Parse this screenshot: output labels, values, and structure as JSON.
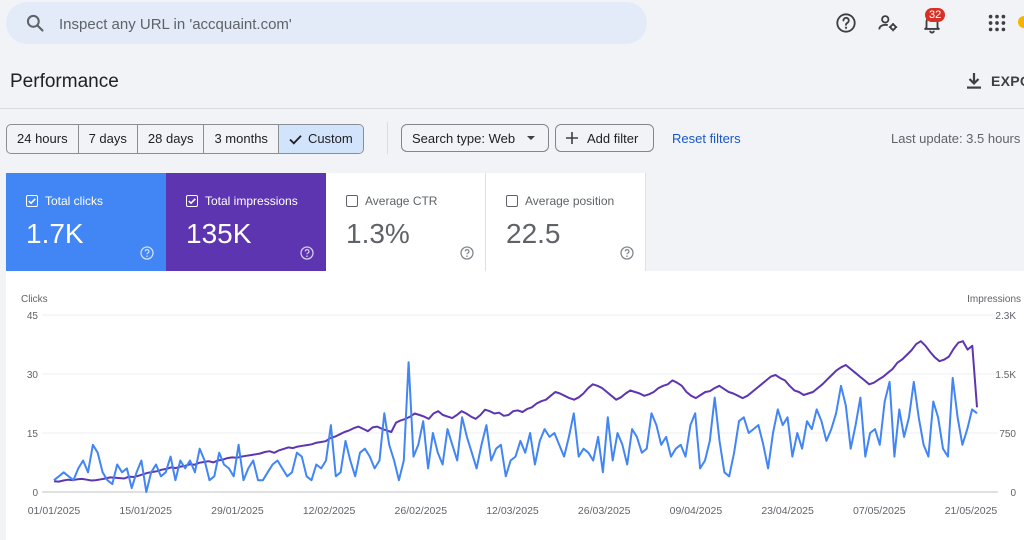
{
  "search": {
    "placeholder": "Inspect any URL in 'accquaint.com'"
  },
  "header": {
    "notification_count": "32",
    "icons": [
      "help-icon",
      "manage-users-icon",
      "notifications-icon",
      "apps-grid-icon"
    ]
  },
  "page": {
    "title": "Performance",
    "export_label": "EXPO"
  },
  "date_ranges": {
    "options": [
      "24 hours",
      "7 days",
      "28 days",
      "3 months",
      "Custom"
    ],
    "selected": "Custom"
  },
  "filters": {
    "search_type_label": "Search type: Web",
    "add_filter_label": "Add filter",
    "reset_label": "Reset filters",
    "last_update": "Last update: 3.5 hours"
  },
  "metrics": [
    {
      "label": "Total clicks",
      "value": "1.7K",
      "checked": true,
      "color": "#4285f4"
    },
    {
      "label": "Total impressions",
      "value": "135K",
      "checked": true,
      "color": "#5e35b1"
    },
    {
      "label": "Average CTR",
      "value": "1.3%",
      "checked": false
    },
    {
      "label": "Average position",
      "value": "22.5",
      "checked": false
    }
  ],
  "chart_data": {
    "type": "line",
    "left_axis": {
      "label": "Clicks",
      "ticks": [
        "45",
        "30",
        "15",
        "0"
      ],
      "range": [
        0,
        45
      ]
    },
    "right_axis": {
      "label": "Impressions",
      "ticks": [
        "2.3K",
        "1.5K",
        "750",
        "0"
      ],
      "range": [
        0,
        2300
      ]
    },
    "x_tick_labels": [
      "01/01/2025",
      "15/01/2025",
      "29/01/2025",
      "12/02/2025",
      "26/02/2025",
      "12/03/2025",
      "26/03/2025",
      "09/04/2025",
      "23/04/2025",
      "07/05/2025",
      "21/05/2025"
    ],
    "series": [
      {
        "axis": "left",
        "color": "#4285f4",
        "values": [
          3,
          4,
          5,
          4,
          3,
          6,
          8,
          5,
          12,
          10,
          5,
          3,
          2,
          7,
          5,
          6,
          1,
          5,
          8,
          0,
          5,
          7,
          4,
          5,
          9,
          3,
          8,
          6,
          8,
          5,
          11,
          8,
          3,
          4,
          10,
          7,
          6,
          4,
          12,
          3,
          6,
          8,
          3,
          3,
          5,
          7,
          8,
          6,
          4,
          5,
          10,
          9,
          4,
          3,
          7,
          6,
          8,
          17,
          4,
          5,
          13,
          8,
          4,
          10,
          11,
          9,
          6,
          8,
          20,
          12,
          8,
          3,
          8,
          33,
          9,
          12,
          18,
          6,
          15,
          10,
          7,
          16,
          12,
          8,
          19,
          14,
          10,
          6,
          12,
          17,
          8,
          11,
          12,
          4,
          8,
          9,
          13,
          10,
          15,
          7,
          13,
          16,
          14,
          15,
          12,
          9,
          14,
          20,
          9,
          11,
          10,
          8,
          14,
          5,
          19,
          8,
          15,
          12,
          7,
          16,
          14,
          10,
          11,
          20,
          17,
          12,
          14,
          9,
          11,
          12,
          9,
          17,
          20,
          6,
          8,
          13,
          24,
          13,
          5,
          4,
          10,
          18,
          19,
          15,
          16,
          17,
          12,
          6,
          15,
          21,
          17,
          19,
          9,
          15,
          11,
          18,
          16,
          21,
          18,
          13,
          16,
          20,
          27,
          22,
          11,
          17,
          24,
          9,
          15,
          16,
          12,
          23,
          28,
          9,
          21,
          14,
          19,
          28,
          19,
          12,
          9,
          23,
          19,
          11,
          9,
          29,
          19,
          12,
          16,
          21,
          20
        ]
      },
      {
        "axis": "right",
        "color": "#5e35b1",
        "values": [
          140,
          135,
          150,
          160,
          155,
          165,
          170,
          160,
          150,
          155,
          165,
          175,
          190,
          185,
          180,
          175,
          200,
          195,
          210,
          230,
          250,
          260,
          270,
          290,
          300,
          320,
          310,
          330,
          340,
          360,
          355,
          380,
          390,
          400,
          385,
          410,
          420,
          440,
          450,
          445,
          460,
          470,
          480,
          490,
          500,
          520,
          530,
          510,
          540,
          560,
          580,
          570,
          590,
          600,
          610,
          620,
          640,
          650,
          660,
          700,
          720,
          750,
          780,
          800,
          830,
          850,
          820,
          790,
          840,
          850,
          820,
          800,
          780,
          900,
          930,
          950,
          980,
          1020,
          1000,
          980,
          950,
          1020,
          1050,
          1000,
          980,
          960,
          1000,
          1050,
          1020,
          980,
          950,
          1000,
          1070,
          1050,
          1020,
          1030,
          990,
          1000,
          1050,
          1060,
          1040,
          1080,
          1100,
          1150,
          1180,
          1200,
          1250,
          1300,
          1280,
          1250,
          1220,
          1200,
          1230,
          1280,
          1350,
          1400,
          1380,
          1350,
          1300,
          1250,
          1200,
          1230,
          1280,
          1320,
          1300,
          1280,
          1250,
          1270,
          1300,
          1350,
          1380,
          1400,
          1450,
          1420,
          1380,
          1300,
          1250,
          1220,
          1260,
          1300,
          1310,
          1350,
          1380,
          1340,
          1300,
          1280,
          1250,
          1220,
          1250,
          1300,
          1350,
          1400,
          1450,
          1500,
          1520,
          1480,
          1450,
          1380,
          1320,
          1300,
          1260,
          1280,
          1300,
          1350,
          1400,
          1460,
          1520,
          1580,
          1620,
          1650,
          1600,
          1550,
          1500,
          1450,
          1400,
          1420,
          1460,
          1500,
          1550,
          1600,
          1680,
          1720,
          1780,
          1840,
          1920,
          1960,
          1900,
          1820,
          1750,
          1700,
          1720,
          1760,
          1860,
          1940,
          1960,
          1850,
          1900,
          1100
        ]
      }
    ]
  }
}
